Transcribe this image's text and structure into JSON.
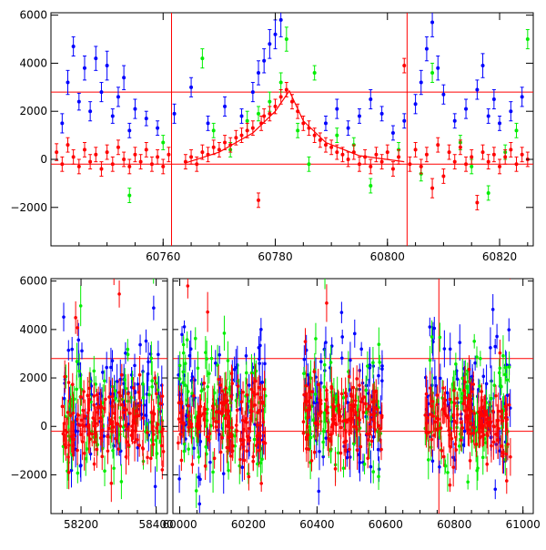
{
  "chart_data": [
    {
      "type": "scatter",
      "title": "",
      "xlabel": "",
      "ylabel": "",
      "xlim": [
        60740,
        60826
      ],
      "ylim": [
        -3600,
        6100
      ],
      "x_ticks": [
        {
          "value": 60760,
          "label": "60760"
        },
        {
          "value": 60780,
          "label": "60780"
        },
        {
          "value": 60800,
          "label": "60800"
        },
        {
          "value": 60820,
          "label": "60820"
        }
      ],
      "y_ticks": [
        {
          "value": -2000,
          "label": "−2000"
        },
        {
          "value": 0,
          "label": "0"
        },
        {
          "value": 2000,
          "label": "2000"
        },
        {
          "value": 4000,
          "label": "4000"
        },
        {
          "value": 6000,
          "label": "6000"
        }
      ],
      "hlines": [
        2800,
        -200
      ],
      "vlines": [
        60761.5,
        60803.5
      ],
      "model_curve": {
        "color": "#ff0000",
        "points": [
          [
            60764,
            -150
          ],
          [
            60770,
            300
          ],
          [
            60776,
            1100
          ],
          [
            60780,
            2000
          ],
          [
            60782.5,
            2850
          ],
          [
            60785,
            1600
          ],
          [
            60789,
            700
          ],
          [
            60795,
            150
          ],
          [
            60803,
            -100
          ]
        ]
      },
      "series": [
        {
          "name": "blue",
          "color": "#0000ff",
          "points": [
            [
              60742,
              1500,
              400
            ],
            [
              60743,
              3200,
              500
            ],
            [
              60744,
              4700,
              400
            ],
            [
              60745,
              2400,
              350
            ],
            [
              60746,
              3800,
              500
            ],
            [
              60747,
              2000,
              400
            ],
            [
              60748,
              4200,
              500
            ],
            [
              60749,
              2800,
              400
            ],
            [
              60750,
              3900,
              600
            ],
            [
              60751,
              1800,
              300
            ],
            [
              60752,
              2600,
              400
            ],
            [
              60753,
              3400,
              500
            ],
            [
              60754,
              1200,
              300
            ],
            [
              60755,
              2100,
              400
            ],
            [
              60757,
              1700,
              300
            ],
            [
              60759,
              1300,
              300
            ],
            [
              60762,
              1900,
              400
            ],
            [
              60765,
              3000,
              400
            ],
            [
              60768,
              1500,
              300
            ],
            [
              60771,
              2200,
              400
            ],
            [
              60774,
              1800,
              300
            ],
            [
              60776,
              2800,
              400
            ],
            [
              60777,
              3600,
              500
            ],
            [
              60778,
              4100,
              500
            ],
            [
              60779,
              4800,
              600
            ],
            [
              60780,
              5200,
              600
            ],
            [
              60781,
              5800,
              700
            ],
            [
              60789,
              1500,
              300
            ],
            [
              60791,
              2100,
              400
            ],
            [
              60793,
              1300,
              300
            ],
            [
              60795,
              1800,
              300
            ],
            [
              60797,
              2500,
              400
            ],
            [
              60799,
              1900,
              300
            ],
            [
              60801,
              1100,
              300
            ],
            [
              60803,
              1600,
              300
            ],
            [
              60805,
              2300,
              400
            ],
            [
              60806,
              3200,
              500
            ],
            [
              60807,
              4600,
              500
            ],
            [
              60808,
              5700,
              600
            ],
            [
              60809,
              3800,
              500
            ],
            [
              60810,
              2700,
              400
            ],
            [
              60812,
              1600,
              300
            ],
            [
              60814,
              2100,
              400
            ],
            [
              60816,
              2900,
              400
            ],
            [
              60817,
              3900,
              500
            ],
            [
              60818,
              1800,
              300
            ],
            [
              60819,
              2500,
              400
            ],
            [
              60820,
              1500,
              300
            ],
            [
              60822,
              2000,
              400
            ],
            [
              60824,
              2600,
              400
            ]
          ]
        },
        {
          "name": "green",
          "color": "#00ee00",
          "points": [
            [
              60754,
              -1500,
              300
            ],
            [
              60760,
              700,
              300
            ],
            [
              60767,
              4200,
              400
            ],
            [
              60769,
              1200,
              300
            ],
            [
              60772,
              400,
              300
            ],
            [
              60775,
              1600,
              400
            ],
            [
              60777,
              1900,
              300
            ],
            [
              60779,
              2400,
              400
            ],
            [
              60781,
              3200,
              400
            ],
            [
              60782,
              5000,
              500
            ],
            [
              60784,
              1200,
              300
            ],
            [
              60786,
              -200,
              300
            ],
            [
              60787,
              3600,
              300
            ],
            [
              60791,
              1000,
              300
            ],
            [
              60794,
              600,
              300
            ],
            [
              60797,
              -1100,
              300
            ],
            [
              60802,
              400,
              300
            ],
            [
              60806,
              -600,
              300
            ],
            [
              60808,
              3600,
              400
            ],
            [
              60813,
              700,
              300
            ],
            [
              60815,
              -300,
              300
            ],
            [
              60818,
              -1400,
              300
            ],
            [
              60821,
              300,
              300
            ],
            [
              60823,
              1200,
              300
            ],
            [
              60825,
              5000,
              400
            ]
          ]
        },
        {
          "name": "red",
          "color": "#ff0000",
          "points": [
            [
              60741,
              300,
              350
            ],
            [
              60742,
              -200,
              300
            ],
            [
              60743,
              600,
              300
            ],
            [
              60744,
              100,
              300
            ],
            [
              60745,
              -300,
              300
            ],
            [
              60746,
              400,
              300
            ],
            [
              60747,
              -100,
              300
            ],
            [
              60748,
              200,
              300
            ],
            [
              60749,
              -400,
              300
            ],
            [
              60750,
              300,
              300
            ],
            [
              60751,
              -200,
              300
            ],
            [
              60752,
              500,
              300
            ],
            [
              60753,
              0,
              300
            ],
            [
              60754,
              -300,
              300
            ],
            [
              60755,
              200,
              300
            ],
            [
              60756,
              -100,
              300
            ],
            [
              60757,
              400,
              300
            ],
            [
              60758,
              -200,
              300
            ],
            [
              60759,
              100,
              300
            ],
            [
              60760,
              -300,
              300
            ],
            [
              60761,
              200,
              300
            ],
            [
              60764,
              -100,
              300
            ],
            [
              60765,
              100,
              300
            ],
            [
              60766,
              -200,
              300
            ],
            [
              60767,
              300,
              300
            ],
            [
              60768,
              200,
              300
            ],
            [
              60769,
              500,
              300
            ],
            [
              60770,
              400,
              300
            ],
            [
              60771,
              700,
              300
            ],
            [
              60772,
              600,
              300
            ],
            [
              60773,
              900,
              300
            ],
            [
              60774,
              1000,
              300
            ],
            [
              60775,
              1200,
              300
            ],
            [
              60776,
              1300,
              300
            ],
            [
              60777,
              -1700,
              300
            ],
            [
              60777.5,
              1500,
              300
            ],
            [
              60778,
              1800,
              300
            ],
            [
              60779,
              1900,
              300
            ],
            [
              60780,
              2200,
              300
            ],
            [
              60781,
              2600,
              300
            ],
            [
              60782,
              2900,
              300
            ],
            [
              60783,
              2400,
              300
            ],
            [
              60784,
              2000,
              300
            ],
            [
              60785,
              1500,
              300
            ],
            [
              60786,
              1300,
              300
            ],
            [
              60787,
              1000,
              300
            ],
            [
              60788,
              800,
              300
            ],
            [
              60789,
              600,
              300
            ],
            [
              60790,
              500,
              300
            ],
            [
              60791,
              300,
              300
            ],
            [
              60792,
              200,
              300
            ],
            [
              60793,
              0,
              300
            ],
            [
              60794,
              300,
              300
            ],
            [
              60795,
              -200,
              300
            ],
            [
              60796,
              100,
              300
            ],
            [
              60797,
              -300,
              300
            ],
            [
              60798,
              200,
              300
            ],
            [
              60799,
              -100,
              300
            ],
            [
              60800,
              300,
              300
            ],
            [
              60801,
              -400,
              300
            ],
            [
              60802,
              100,
              300
            ],
            [
              60803,
              3900,
              300
            ],
            [
              60804,
              -200,
              300
            ],
            [
              60805,
              400,
              300
            ],
            [
              60806,
              -300,
              300
            ],
            [
              60807,
              200,
              300
            ],
            [
              60808,
              -1200,
              400
            ],
            [
              60809,
              600,
              300
            ],
            [
              60810,
              -700,
              300
            ],
            [
              60811,
              300,
              300
            ],
            [
              60812,
              -100,
              300
            ],
            [
              60813,
              500,
              300
            ],
            [
              60814,
              -200,
              300
            ],
            [
              60815,
              100,
              300
            ],
            [
              60816,
              -1800,
              300
            ],
            [
              60817,
              300,
              300
            ],
            [
              60818,
              -100,
              300
            ],
            [
              60819,
              200,
              300
            ],
            [
              60820,
              -300,
              300
            ],
            [
              60821,
              100,
              300
            ],
            [
              60822,
              400,
              300
            ],
            [
              60823,
              -200,
              300
            ],
            [
              60824,
              200,
              300
            ],
            [
              60825,
              0,
              300
            ]
          ]
        }
      ]
    },
    {
      "type": "scatter",
      "title": "",
      "xlabel": "",
      "ylabel": "",
      "axis_break": true,
      "segments": [
        {
          "xlim": [
            58120,
            58430
          ],
          "x_ticks": [
            {
              "value": 58200,
              "label": "58200"
            },
            {
              "value": 58400,
              "label": "58400"
            }
          ],
          "data_range": [
            58150,
            58420
          ]
        },
        {
          "xlim": [
            59980,
            61030
          ],
          "x_ticks": [
            {
              "value": 60000,
              "label": "60000"
            },
            {
              "value": 60200,
              "label": "60200"
            },
            {
              "value": 60400,
              "label": "60400"
            },
            {
              "value": 60600,
              "label": "60600"
            },
            {
              "value": 60800,
              "label": "60800"
            },
            {
              "value": 61000,
              "label": "61000"
            }
          ],
          "data_ranges": [
            [
              59995,
              60250
            ],
            [
              60360,
              60590
            ],
            [
              60715,
              60965
            ]
          ]
        }
      ],
      "ylim": [
        -3600,
        6100
      ],
      "y_ticks": [
        {
          "value": -2000,
          "label": "−2000"
        },
        {
          "value": 0,
          "label": "0"
        },
        {
          "value": 2000,
          "label": "2000"
        },
        {
          "value": 4000,
          "label": "4000"
        },
        {
          "value": 6000,
          "label": "6000"
        }
      ],
      "hlines": [
        2800,
        -200
      ],
      "vlines": [
        60755
      ],
      "series": [
        {
          "name": "blue",
          "color": "#0000ff",
          "center": 900,
          "spread": 1700
        },
        {
          "name": "green",
          "color": "#00ee00",
          "center": 600,
          "spread": 1400
        },
        {
          "name": "red",
          "color": "#ff0000",
          "center": 250,
          "spread": 900
        }
      ]
    }
  ]
}
